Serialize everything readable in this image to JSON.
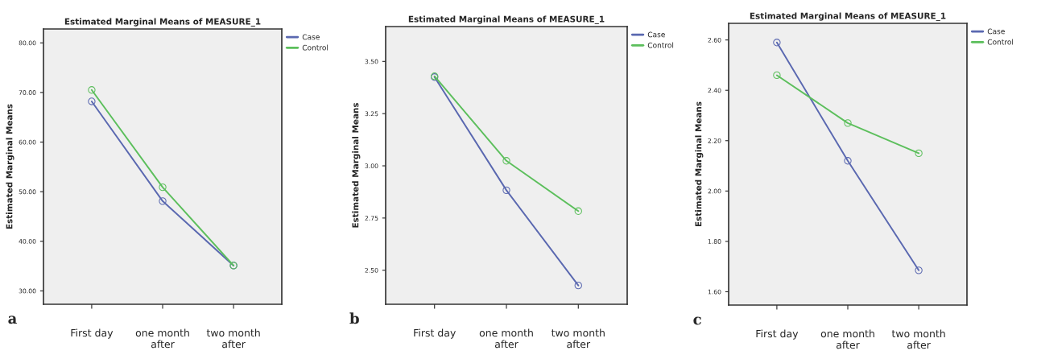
{
  "chart_data": [
    {
      "type": "line",
      "title": "Estimated Marginal Means of MEASURE_1",
      "ylabel": "Estimated Marginal Means",
      "categories": [
        "First day",
        "one month\nafter",
        "two month\nafter"
      ],
      "ylim": [
        27.3,
        82.8
      ],
      "yticks": [
        {
          "value": 30,
          "label": "30.00"
        },
        {
          "value": 40,
          "label": "40.00"
        },
        {
          "value": 50,
          "label": "50.00"
        },
        {
          "value": 60,
          "label": "60.00"
        },
        {
          "value": 70,
          "label": "70.00"
        },
        {
          "value": 80,
          "label": "80.00"
        }
      ],
      "marker": "circle",
      "legend": "top right",
      "annotations": [
        "a"
      ],
      "series": [
        {
          "name": "Case",
          "color": "#5a68b0",
          "values": [
            68.2,
            48.1,
            35.1
          ]
        },
        {
          "name": "Control",
          "color": "#5cbf5c",
          "values": [
            70.5,
            50.9,
            35.1
          ]
        }
      ]
    },
    {
      "type": "line",
      "title": "Estimated Marginal Means of MEASURE_1",
      "ylabel": "Estimated Marginal Means",
      "categories": [
        "First day",
        "one month\nafter",
        "two month\nafter"
      ],
      "ylim": [
        2.337,
        3.667
      ],
      "yticks": [
        {
          "value": 2.5,
          "label": "2.50"
        },
        {
          "value": 2.75,
          "label": "2.75"
        },
        {
          "value": 3.0,
          "label": "3.00"
        },
        {
          "value": 3.25,
          "label": "3.25"
        },
        {
          "value": 3.5,
          "label": "3.50"
        }
      ],
      "marker": "circle",
      "legend": "top right",
      "annotations": [
        "b"
      ],
      "series": [
        {
          "name": "Case",
          "color": "#5a68b0",
          "values": [
            3.425,
            2.883,
            2.427
          ]
        },
        {
          "name": "Control",
          "color": "#5cbf5c",
          "values": [
            3.429,
            3.024,
            2.783
          ]
        }
      ]
    },
    {
      "type": "line",
      "title": "Estimated Marginal Means of MEASURE_1",
      "ylabel": "Estimated Marginal Means",
      "categories": [
        "First day",
        "one month\nafter",
        "two month\nafter"
      ],
      "ylim": [
        1.547,
        2.666
      ],
      "yticks": [
        {
          "value": 1.6,
          "label": "1.60"
        },
        {
          "value": 1.8,
          "label": "1.80"
        },
        {
          "value": 2.0,
          "label": "2.00"
        },
        {
          "value": 2.2,
          "label": "2.20"
        },
        {
          "value": 2.4,
          "label": "2.40"
        },
        {
          "value": 2.6,
          "label": "2.60"
        }
      ],
      "marker": "circle",
      "legend": "top right",
      "annotations": [
        "c"
      ],
      "series": [
        {
          "name": "Case",
          "color": "#5a68b0",
          "values": [
            2.59,
            2.12,
            1.685
          ]
        },
        {
          "name": "Control",
          "color": "#5cbf5c",
          "values": [
            2.46,
            2.27,
            2.15
          ]
        }
      ]
    }
  ]
}
